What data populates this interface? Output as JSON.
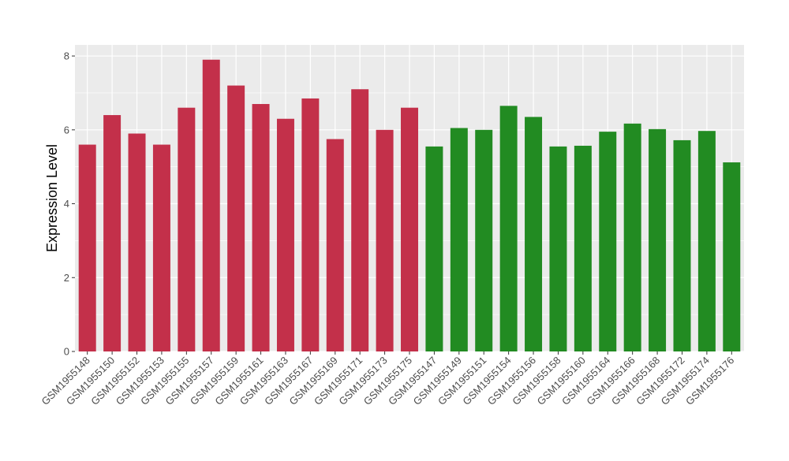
{
  "chart_data": {
    "type": "bar",
    "title": "",
    "xlabel": "",
    "ylabel": "Expression Level",
    "ylim": [
      0,
      8.3
    ],
    "yticks": [
      0,
      2,
      4,
      6,
      8
    ],
    "grid": true,
    "legend": "none",
    "colors": {
      "group_a": "#C3304A",
      "group_b": "#228B22",
      "panel_bg": "#EBEBEB",
      "grid": "#FFFFFF"
    },
    "categories": [
      "GSM1955148",
      "GSM1955150",
      "GSM1955152",
      "GSM1955153",
      "GSM1955155",
      "GSM1955157",
      "GSM1955159",
      "GSM1955161",
      "GSM1955163",
      "GSM1955167",
      "GSM1955169",
      "GSM1955171",
      "GSM1955173",
      "GSM1955175",
      "GSM1955147",
      "GSM1955149",
      "GSM1955151",
      "GSM1955154",
      "GSM1955156",
      "GSM1955158",
      "GSM1955160",
      "GSM1955164",
      "GSM1955166",
      "GSM1955168",
      "GSM1955172",
      "GSM1955174",
      "GSM1955176"
    ],
    "values": [
      5.6,
      6.4,
      5.9,
      5.6,
      6.6,
      7.9,
      7.2,
      6.7,
      6.3,
      6.85,
      5.75,
      7.1,
      6.0,
      6.6,
      5.55,
      6.05,
      6.0,
      6.65,
      6.35,
      5.55,
      5.57,
      5.95,
      6.17,
      6.02,
      5.72,
      5.97,
      5.12
    ],
    "groups": [
      "a",
      "a",
      "a",
      "a",
      "a",
      "a",
      "a",
      "a",
      "a",
      "a",
      "a",
      "a",
      "a",
      "a",
      "b",
      "b",
      "b",
      "b",
      "b",
      "b",
      "b",
      "b",
      "b",
      "b",
      "b",
      "b",
      "b"
    ]
  }
}
